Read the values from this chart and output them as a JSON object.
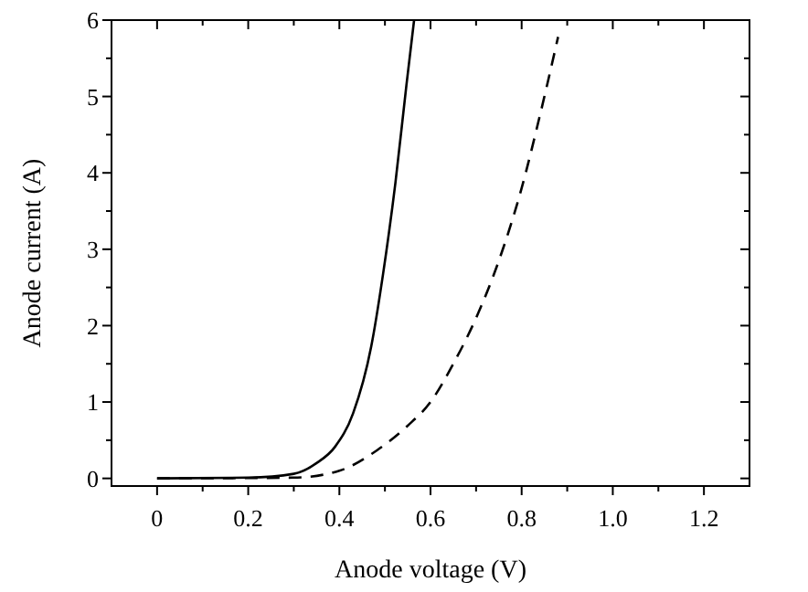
{
  "chart_data": {
    "type": "line",
    "xlabel": "Anode voltage (V)",
    "ylabel": "Anode current (A)",
    "xlim": [
      -0.1,
      1.3
    ],
    "ylim": [
      -0.1,
      6
    ],
    "xticks": [
      0,
      {
        "value": 0.1,
        "label": null
      },
      0.2,
      {
        "value": 0.3,
        "label": null
      },
      0.4,
      {
        "value": 0.5,
        "label": null
      },
      0.6,
      {
        "value": 0.7,
        "label": null
      },
      0.8,
      {
        "value": 0.9,
        "label": null
      },
      {
        "value": 1.0,
        "label": "1.0"
      },
      {
        "value": 1.1,
        "label": null
      },
      1.2
    ],
    "yticks": [
      0,
      {
        "value": 0.5,
        "label": null
      },
      1,
      {
        "value": 1.5,
        "label": null
      },
      2,
      {
        "value": 2.5,
        "label": null
      },
      3,
      {
        "value": 3.5,
        "label": null
      },
      4,
      {
        "value": 4.5,
        "label": null
      },
      5,
      {
        "value": 5.5,
        "label": null
      },
      6
    ],
    "grid": false,
    "series": [
      {
        "color": "#000000",
        "line_style": "solid",
        "x": [
          0,
          0.2,
          0.3,
          0.35,
          0.39,
          0.43,
          0.47,
          0.496,
          0.523,
          0.547,
          0.564
        ],
        "values": [
          0,
          0.01,
          0.06,
          0.2,
          0.41,
          0.85,
          1.73,
          2.68,
          3.87,
          5.14,
          6.0
        ]
      },
      {
        "color": "#000000",
        "line_style": "dashed",
        "x": [
          0,
          0.3,
          0.4,
          0.483,
          0.55,
          0.6,
          0.65,
          0.7,
          0.75,
          0.8,
          0.84,
          0.88
        ],
        "values": [
          0,
          0.01,
          0.1,
          0.37,
          0.69,
          1.0,
          1.5,
          2.1,
          2.85,
          3.8,
          4.75,
          5.78
        ]
      }
    ]
  }
}
